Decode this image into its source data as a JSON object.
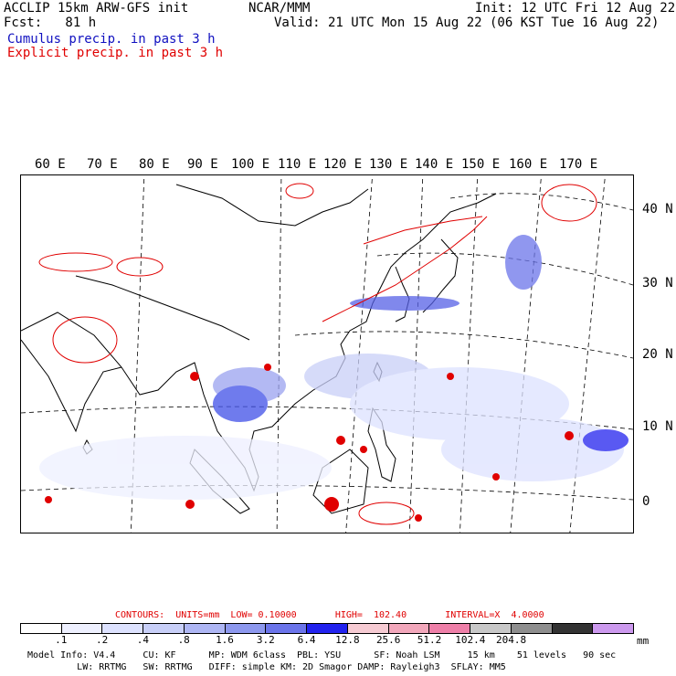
{
  "header": {
    "title_left": "ACCLIP 15km ARW-GFS init",
    "center": "NCAR/MMM",
    "init": "Init: 12 UTC Fri 12 Aug 22",
    "fcst": "Fcst:   81 h",
    "valid": "Valid: 21 UTC Mon 15 Aug 22 (06 KST Tue 16 Aug 22)",
    "cumulus_legend": "Cumulus precip. in past 3 h",
    "explicit_legend": "Explicit precip. in past 3 h"
  },
  "map": {
    "lon_labels": [
      "60 E",
      "70 E",
      "80 E",
      "90 E",
      "100 E",
      "110 E",
      "120 E",
      "130 E",
      "140 E",
      "150 E",
      "160 E",
      "170 E"
    ],
    "lat_labels": [
      "40 N",
      "30 N",
      "20 N",
      "10 N",
      "0"
    ],
    "colors": {
      "cumulus": "#1a1ad8",
      "explicit": "#e00000",
      "coast": "#000000",
      "graticule": "#000000"
    }
  },
  "contour_info": {
    "label": "CONTOURS:  UNITS=mm  LOW= 0.10000       HIGH=  102.40       INTERVAL=X  4.0000"
  },
  "colorbar": {
    "colors": [
      "#ffffff",
      "#eef0ff",
      "#dde2ff",
      "#c8cff8",
      "#aeb6f4",
      "#8d98ee",
      "#6b74ea",
      "#2222ee",
      "#f6cbd3",
      "#f2a7bb",
      "#ee7fa8",
      "#c8c8c8",
      "#8e8e8e",
      "#333333",
      "#cc99ee"
    ],
    "ticks": [
      ".1",
      ".2",
      ".4",
      ".8",
      "1.6",
      "3.2",
      "6.4",
      "12.8",
      "25.6",
      "51.2",
      "102.4",
      "204.8"
    ],
    "units": "mm"
  },
  "footer": {
    "line1": "Model Info: V4.4     CU: KF      MP: WDM 6class  PBL: YSU      SF: Noah LSM     15 km    51 levels   90 sec",
    "line2": "         LW: RRTMG   SW: RRTMG   DIFF: simple KM: 2D Smagor DAMP: Rayleigh3  SFLAY: MM5"
  }
}
